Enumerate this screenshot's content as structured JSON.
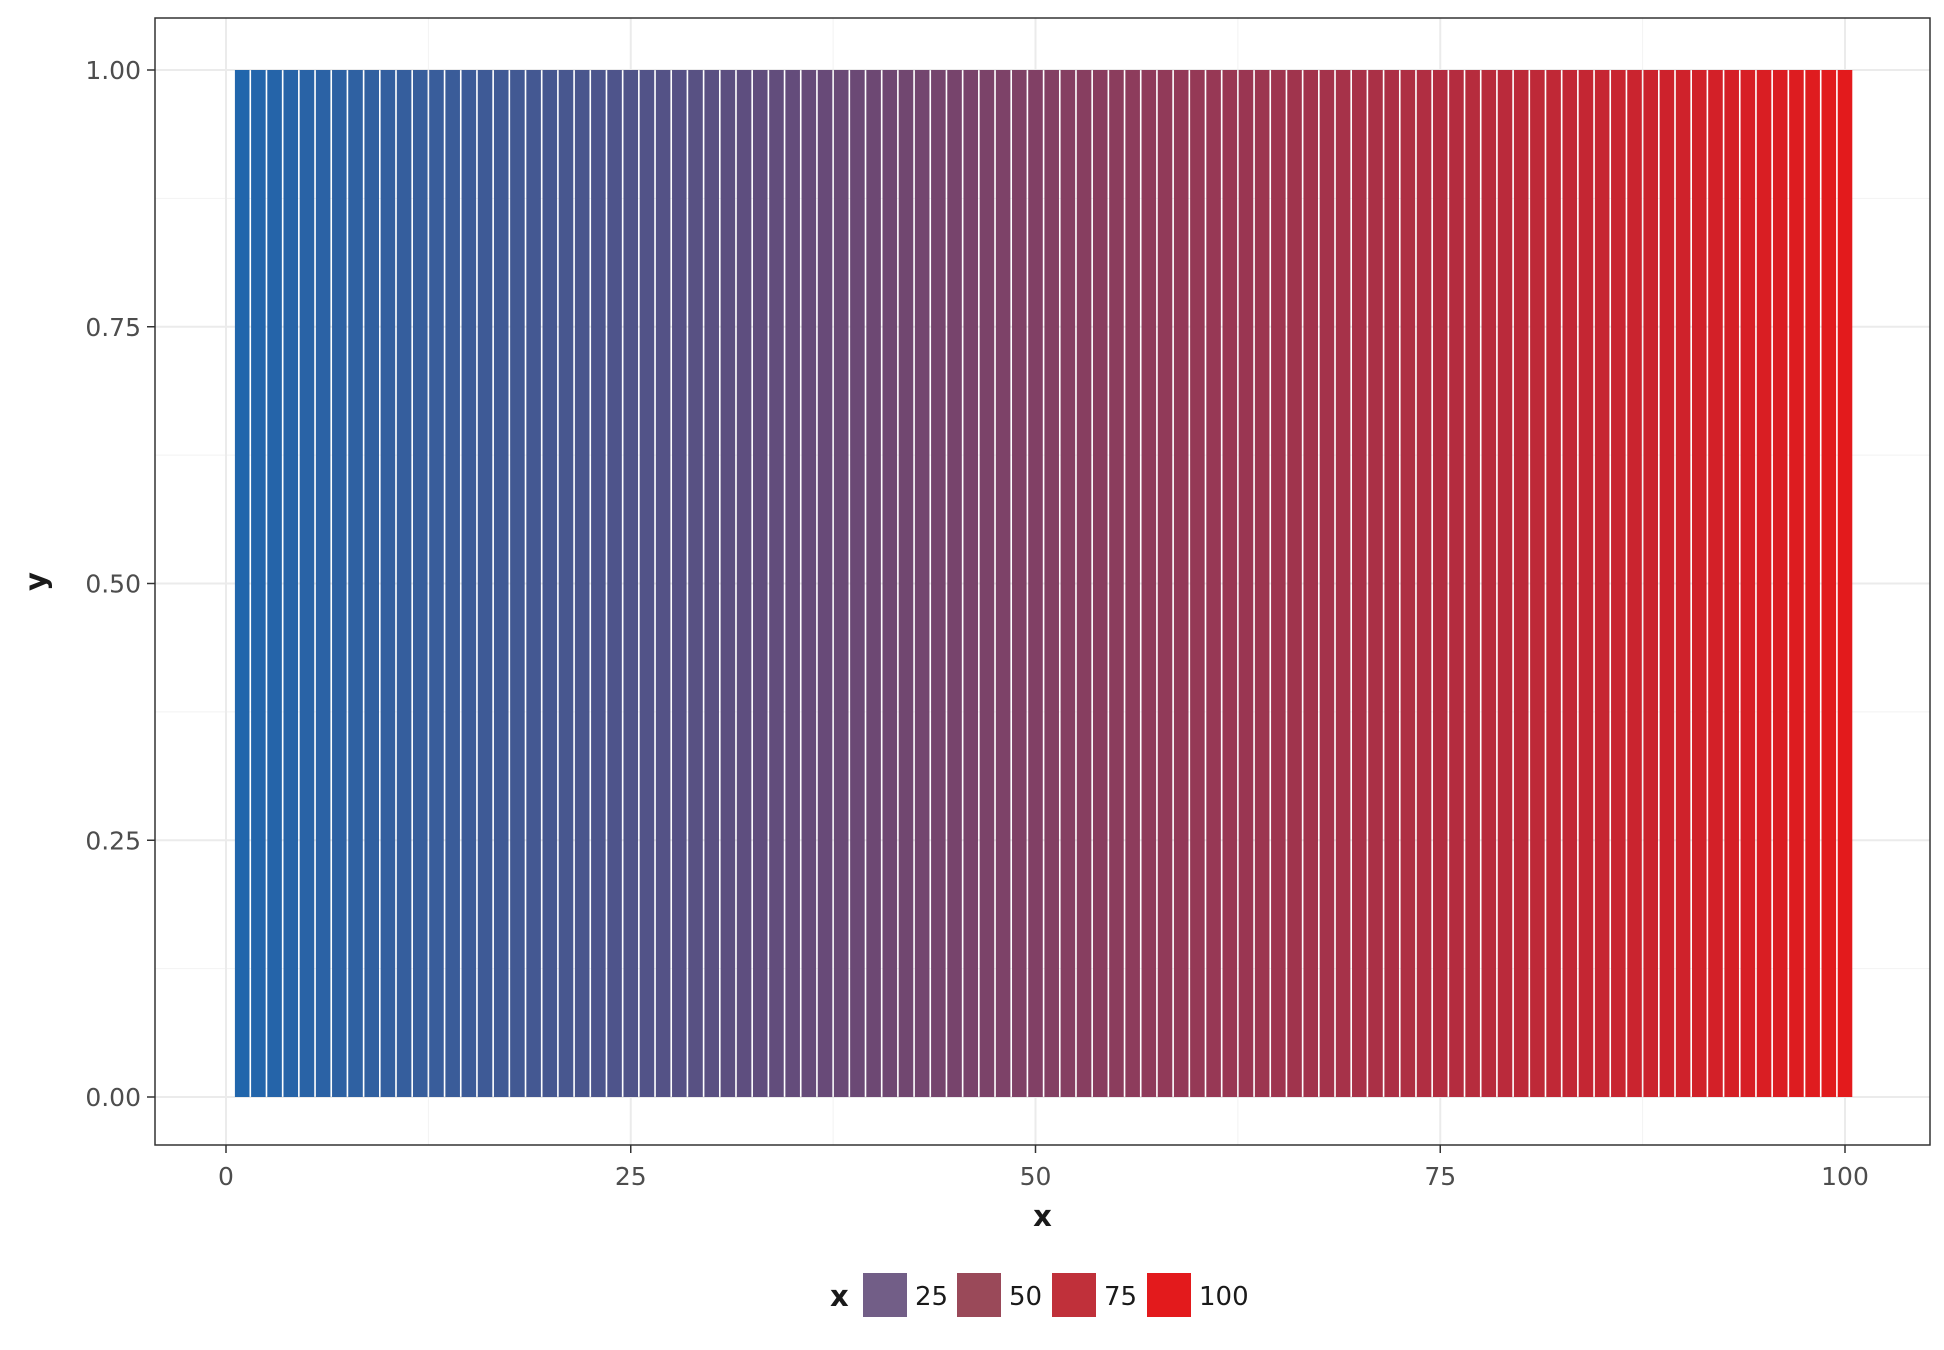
{
  "chart_data": {
    "type": "bar",
    "title": "",
    "xlabel": "x",
    "ylabel": "y",
    "x": [
      1,
      2,
      3,
      4,
      5,
      6,
      7,
      8,
      9,
      10,
      11,
      12,
      13,
      14,
      15,
      16,
      17,
      18,
      19,
      20,
      21,
      22,
      23,
      24,
      25,
      26,
      27,
      28,
      29,
      30,
      31,
      32,
      33,
      34,
      35,
      36,
      37,
      38,
      39,
      40,
      41,
      42,
      43,
      44,
      45,
      46,
      47,
      48,
      49,
      50,
      51,
      52,
      53,
      54,
      55,
      56,
      57,
      58,
      59,
      60,
      61,
      62,
      63,
      64,
      65,
      66,
      67,
      68,
      69,
      70,
      71,
      72,
      73,
      74,
      75,
      76,
      77,
      78,
      79,
      80,
      81,
      82,
      83,
      84,
      85,
      86,
      87,
      88,
      89,
      90,
      91,
      92,
      93,
      94,
      95,
      96,
      97,
      98,
      99,
      100
    ],
    "y_value": 1,
    "xlim": [
      -3.5,
      104.5
    ],
    "ylim": [
      -0.05,
      1.05
    ],
    "x_ticks": [
      "0",
      "25",
      "50",
      "75",
      "100"
    ],
    "y_ticks": [
      "0.00",
      "0.25",
      "0.50",
      "0.75",
      "1.00"
    ],
    "fill_gradient": {
      "low_color": "#2166ac",
      "high_color": "#e31a1c",
      "low_value": 1,
      "high_value": 100
    },
    "legend": {
      "title": "x",
      "position": "bottom",
      "items": [
        {
          "label": "25",
          "color": "#725e87"
        },
        {
          "label": "50",
          "color": "#9a4959"
        },
        {
          "label": "75",
          "color": "#c0303a"
        },
        {
          "label": "100",
          "color": "#e31a1c"
        }
      ]
    },
    "grid": true,
    "theme": "bw"
  }
}
